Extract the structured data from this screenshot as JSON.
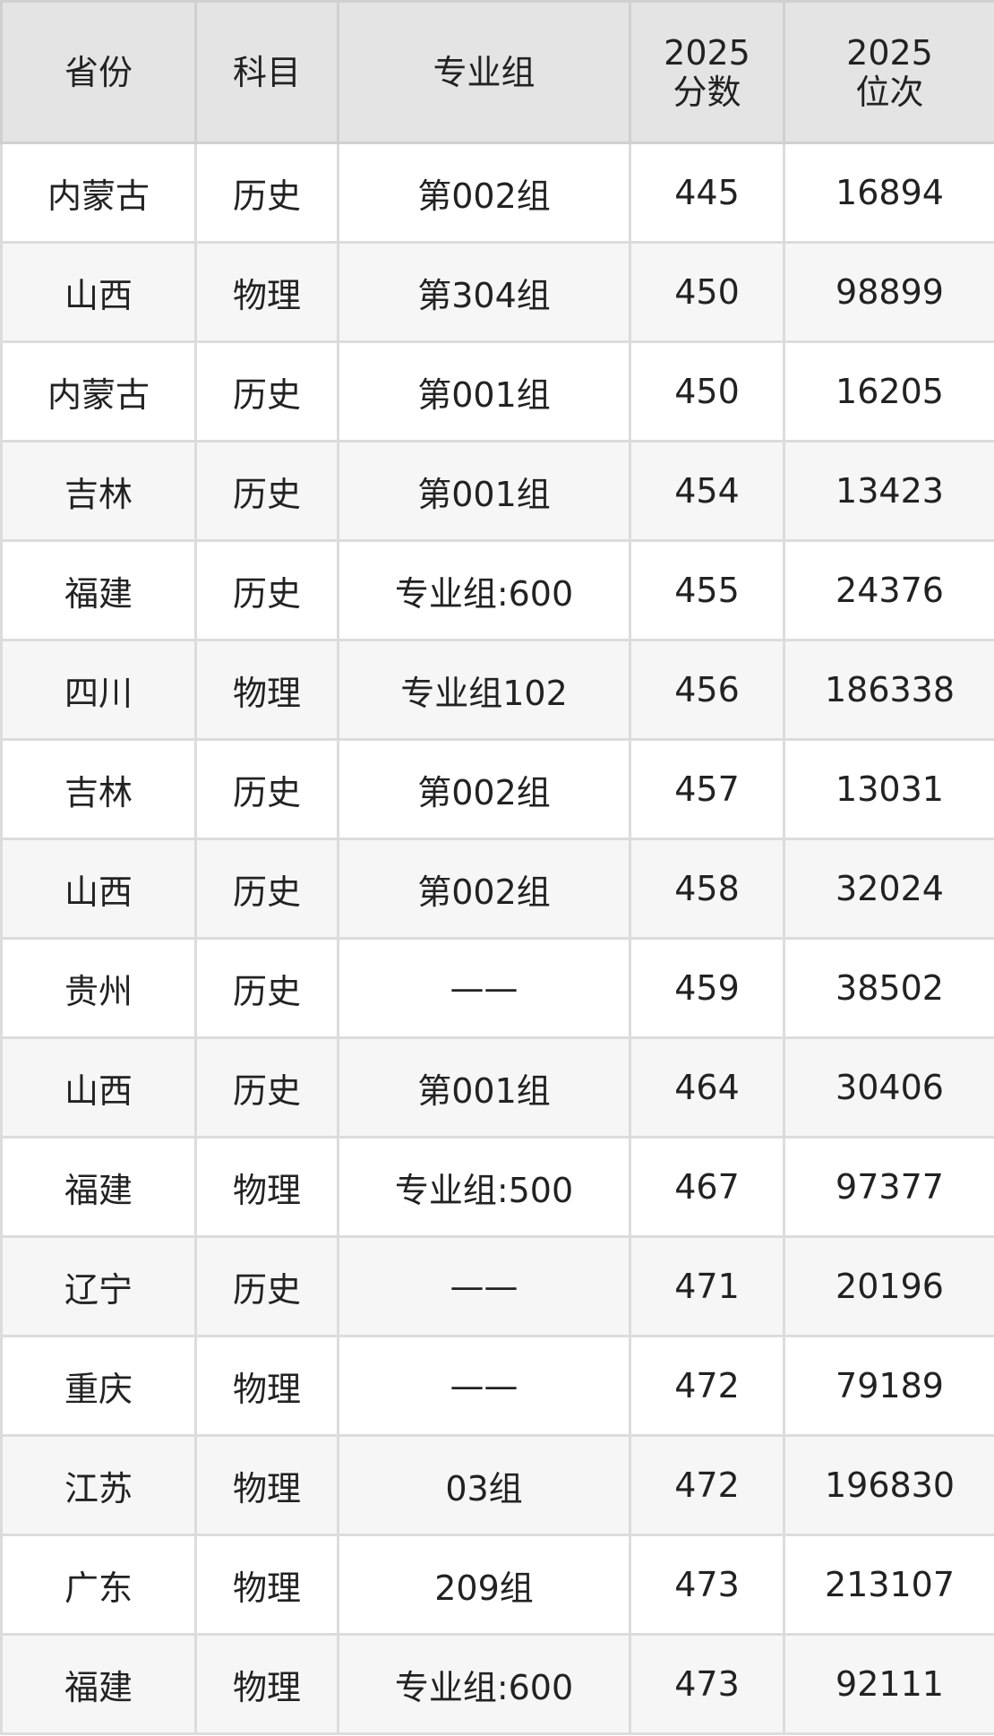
{
  "table": {
    "headers": [
      "省份",
      "科目",
      "专业组",
      "2025\n分数",
      "2025\n位次"
    ],
    "header_lines": [
      [
        "省份"
      ],
      [
        "科目"
      ],
      [
        "专业组"
      ],
      [
        "2025",
        "分数"
      ],
      [
        "2025",
        "位次"
      ]
    ],
    "rows": [
      [
        "内蒙古",
        "历史",
        "第002组",
        "445",
        "16894"
      ],
      [
        "山西",
        "物理",
        "第304组",
        "450",
        "98899"
      ],
      [
        "内蒙古",
        "历史",
        "第001组",
        "450",
        "16205"
      ],
      [
        "吉林",
        "历史",
        "第001组",
        "454",
        "13423"
      ],
      [
        "福建",
        "历史",
        "专业组:600",
        "455",
        "24376"
      ],
      [
        "四川",
        "物理",
        "专业组102",
        "456",
        "186338"
      ],
      [
        "吉林",
        "历史",
        "第002组",
        "457",
        "13031"
      ],
      [
        "山西",
        "历史",
        "第002组",
        "458",
        "32024"
      ],
      [
        "贵州",
        "历史",
        "——",
        "459",
        "38502"
      ],
      [
        "山西",
        "历史",
        "第001组",
        "464",
        "30406"
      ],
      [
        "福建",
        "物理",
        "专业组:500",
        "467",
        "97377"
      ],
      [
        "辽宁",
        "历史",
        "——",
        "471",
        "20196"
      ],
      [
        "重庆",
        "物理",
        "——",
        "472",
        "79189"
      ],
      [
        "江苏",
        "物理",
        "03组",
        "472",
        "196830"
      ],
      [
        "广东",
        "物理",
        "209组",
        "473",
        "213107"
      ],
      [
        "福建",
        "物理",
        "专业组:600",
        "473",
        "92111"
      ]
    ]
  }
}
